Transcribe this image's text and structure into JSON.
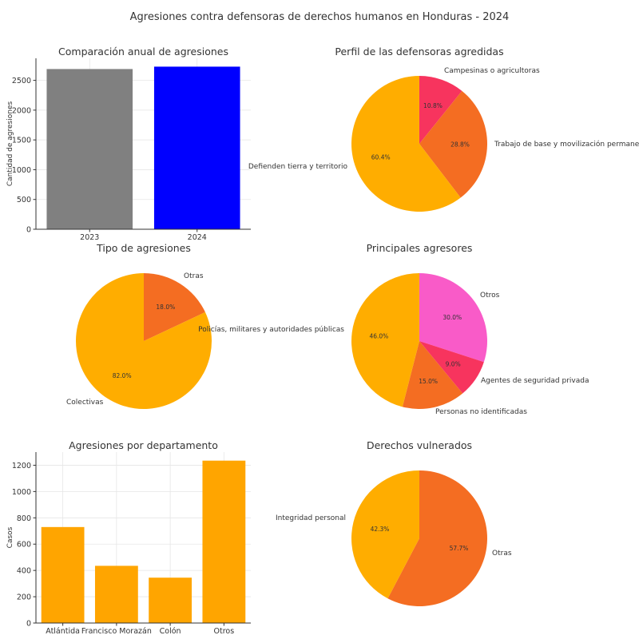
{
  "title": "Agresiones contra defensoras de derechos humanos en Honduras - 2024",
  "chart_data": [
    {
      "type": "bar",
      "title": "Comparación anual de agresiones",
      "categories": [
        "2023",
        "2024"
      ],
      "values": [
        2690,
        2730
      ],
      "colors": [
        "#808080",
        "#0000ff"
      ],
      "xlabel": "",
      "ylabel": "Cantidad de agresiones",
      "ylim": [
        0,
        2870
      ],
      "yticks": [
        0,
        500,
        1000,
        1500,
        2000,
        2500
      ],
      "grid": true
    },
    {
      "type": "pie",
      "title": "Perfil de las defensoras agredidas",
      "labels": [
        "Campesinas o agricultoras",
        "Trabajo de base y movilización permanente",
        "Defienden tierra y territorio"
      ],
      "values": [
        10.8,
        28.8,
        60.4
      ],
      "pct_labels": [
        "10.8%",
        "28.8%",
        "60.4%"
      ],
      "colors": [
        "#f7345e",
        "#f46d22",
        "#ffad00"
      ]
    },
    {
      "type": "pie",
      "title": "Tipo de agresiones",
      "labels": [
        "Otras",
        "Colectivas"
      ],
      "values": [
        18.0,
        82.0
      ],
      "pct_labels": [
        "18.0%",
        "82.0%"
      ],
      "colors": [
        "#f46d22",
        "#ffad00"
      ]
    },
    {
      "type": "pie",
      "title": "Principales agresores",
      "labels": [
        "Otros",
        "Agentes de seguridad privada",
        "Personas no identificadas",
        "Policías, militares y autoridades públicas"
      ],
      "values": [
        30.0,
        9.0,
        15.0,
        46.0
      ],
      "pct_labels": [
        "30.0%",
        "9.0%",
        "15.0%",
        "46.0%"
      ],
      "colors": [
        "#f95bc8",
        "#f7345e",
        "#f46d22",
        "#ffad00"
      ]
    },
    {
      "type": "bar",
      "title": "Agresiones por departamento",
      "categories": [
        "Atlántida",
        "Francisco Morazán",
        "Colón",
        "Otros"
      ],
      "values": [
        730,
        435,
        345,
        1235
      ],
      "colors": [
        "#ffa500",
        "#ffa500",
        "#ffa500",
        "#ffa500"
      ],
      "xlabel": "",
      "ylabel": "Casos",
      "ylim": [
        0,
        1300
      ],
      "yticks": [
        0,
        200,
        400,
        600,
        800,
        1000,
        1200
      ],
      "grid": true
    },
    {
      "type": "pie",
      "title": "Derechos vulnerados",
      "labels": [
        "Otras",
        "Integridad personal"
      ],
      "values": [
        57.7,
        42.3
      ],
      "pct_labels": [
        "57.7%",
        "42.3%"
      ],
      "colors": [
        "#f46d22",
        "#ffad00"
      ]
    }
  ]
}
